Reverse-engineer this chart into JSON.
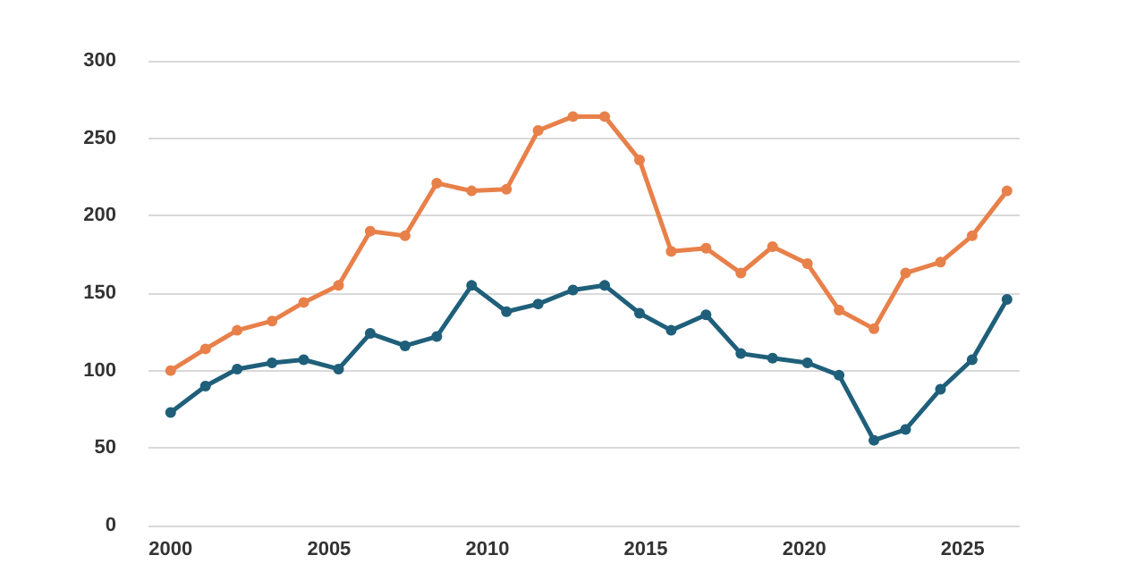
{
  "chart_data": {
    "type": "line",
    "xlim": [
      1999.3,
      2026.8
    ],
    "xticks": [
      2000,
      2005,
      2010,
      2015,
      2020,
      2025
    ],
    "ylim": [
      0,
      300
    ],
    "yticks": [
      0,
      50,
      100,
      150,
      200,
      250,
      300
    ],
    "grid": "y",
    "marker": "circle",
    "line_style": "solid",
    "series": [
      {
        "color": "#e8804a",
        "x": [
          2000,
          2001.1,
          2002.1,
          2003.2,
          2004.2,
          2005.3,
          2006.3,
          2007.4,
          2008.4,
          2009.5,
          2010.6,
          2011.6,
          2012.7,
          2013.7,
          2014.8,
          2015.8,
          2016.9,
          2018,
          2019,
          2020.1,
          2021.1,
          2022.2,
          2023.2,
          2024.3,
          2025.3,
          2026.4
        ],
        "values": [
          100,
          114,
          126,
          132,
          144,
          155,
          190,
          187,
          221,
          216,
          217,
          255,
          264,
          264,
          236,
          177,
          179,
          163,
          180,
          169,
          139,
          127,
          163,
          170,
          187,
          216
        ]
      },
      {
        "color": "#1f5f7a",
        "x": [
          2000,
          2001.1,
          2002.1,
          2003.2,
          2004.2,
          2005.3,
          2006.3,
          2007.4,
          2008.4,
          2009.5,
          2010.6,
          2011.6,
          2012.7,
          2013.7,
          2014.8,
          2015.8,
          2016.9,
          2018,
          2019,
          2020.1,
          2021.1,
          2022.2,
          2023.2,
          2024.3,
          2025.3,
          2026.4
        ],
        "values": [
          73,
          90,
          101,
          105,
          107,
          101,
          124,
          116,
          122,
          155,
          138,
          143,
          152,
          155,
          137,
          126,
          136,
          111,
          108,
          105,
          97,
          55,
          62,
          88,
          107,
          146
        ]
      }
    ]
  }
}
